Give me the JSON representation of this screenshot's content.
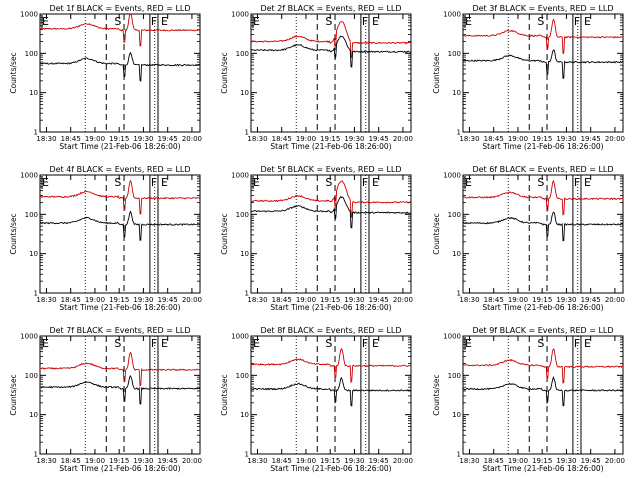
{
  "figure": {
    "title_template": "Det {n}f BLACK = Events, RED = LLD",
    "x_ticks": [
      "18:30",
      "18:45",
      "19:00",
      "19:15",
      "19:30",
      "19:45",
      "20:00"
    ],
    "y_ticks": [
      "1",
      "10",
      "100",
      "1000"
    ],
    "ylabel": "Counts/sec",
    "xlabel": "Start Time (21-Feb-06 18:26:00)",
    "markers": [
      "E",
      "S",
      "F",
      "E"
    ]
  },
  "chart_data": [
    {
      "type": "line",
      "title": "Det 1f BLACK = Events, RED = LLD",
      "xlabel": "Start Time (21-Feb-06 18:26:00)",
      "ylabel": "Counts/sec",
      "ylim": [
        1,
        1000
      ],
      "scale": "log",
      "x_ticks": [
        "18:30",
        "18:45",
        "19:00",
        "19:15",
        "19:30",
        "19:45",
        "20:00"
      ],
      "events_level": 55,
      "lld_level": 420,
      "flare": "narrow",
      "series": [
        {
          "name": "BLACK = Events",
          "color": "#000000"
        },
        {
          "name": "RED = LLD",
          "color": "#cc0000"
        }
      ]
    },
    {
      "type": "line",
      "title": "Det 2f BLACK = Events, RED = LLD",
      "xlabel": "Start Time (21-Feb-06 18:26:00)",
      "ylabel": "Counts/sec",
      "ylim": [
        1,
        1000
      ],
      "scale": "log",
      "x_ticks": [
        "18:30",
        "18:45",
        "19:00",
        "19:15",
        "19:30",
        "19:45",
        "20:00"
      ],
      "events_level": 120,
      "lld_level": 200,
      "flare": "broad",
      "series": [
        {
          "name": "BLACK = Events",
          "color": "#000000"
        },
        {
          "name": "RED = LLD",
          "color": "#cc0000"
        }
      ]
    },
    {
      "type": "line",
      "title": "Det 3f BLACK = Events, RED = LLD",
      "xlabel": "Start Time (21-Feb-06 18:26:00)",
      "ylabel": "Counts/sec",
      "ylim": [
        1,
        1000
      ],
      "scale": "log",
      "x_ticks": [
        "18:30",
        "18:45",
        "19:00",
        "19:15",
        "19:30",
        "19:45",
        "20:00"
      ],
      "events_level": 65,
      "lld_level": 280,
      "flare": "narrow",
      "series": [
        {
          "name": "BLACK = Events",
          "color": "#000000"
        },
        {
          "name": "RED = LLD",
          "color": "#cc0000"
        }
      ]
    },
    {
      "type": "line",
      "title": "Det 4f BLACK = Events, RED = LLD",
      "xlabel": "Start Time (21-Feb-06 18:26:00)",
      "ylabel": "Counts/sec",
      "ylim": [
        1,
        1000
      ],
      "scale": "log",
      "x_ticks": [
        "18:30",
        "18:45",
        "19:00",
        "19:15",
        "19:30",
        "19:45",
        "20:00"
      ],
      "events_level": 60,
      "lld_level": 280,
      "flare": "narrow",
      "series": [
        {
          "name": "BLACK = Events",
          "color": "#000000"
        },
        {
          "name": "RED = LLD",
          "color": "#cc0000"
        }
      ]
    },
    {
      "type": "line",
      "title": "Det 5f BLACK = Events, RED = LLD",
      "xlabel": "Start Time (21-Feb-06 18:26:00)",
      "ylabel": "Counts/sec",
      "ylim": [
        1,
        1000
      ],
      "scale": "log",
      "x_ticks": [
        "18:30",
        "18:45",
        "19:00",
        "19:15",
        "19:30",
        "19:45",
        "20:00"
      ],
      "events_level": 120,
      "lld_level": 220,
      "flare": "broad",
      "series": [
        {
          "name": "BLACK = Events",
          "color": "#000000"
        },
        {
          "name": "RED = LLD",
          "color": "#cc0000"
        }
      ]
    },
    {
      "type": "line",
      "title": "Det 6f BLACK = Events, RED = LLD",
      "xlabel": "Start Time (21-Feb-06 18:26:00)",
      "ylabel": "Counts/sec",
      "ylim": [
        1,
        1000
      ],
      "scale": "log",
      "x_ticks": [
        "18:30",
        "18:45",
        "19:00",
        "19:15",
        "19:30",
        "19:45",
        "20:00"
      ],
      "events_level": 60,
      "lld_level": 270,
      "flare": "narrow",
      "series": [
        {
          "name": "BLACK = Events",
          "color": "#000000"
        },
        {
          "name": "RED = LLD",
          "color": "#cc0000"
        }
      ]
    },
    {
      "type": "line",
      "title": "Det 7f BLACK = Events, RED = LLD",
      "xlabel": "Start Time (21-Feb-06 18:26:00)",
      "ylabel": "Counts/sec",
      "ylim": [
        1,
        1000
      ],
      "scale": "log",
      "x_ticks": [
        "18:30",
        "18:45",
        "19:00",
        "19:15",
        "19:30",
        "19:45",
        "20:00"
      ],
      "events_level": 50,
      "lld_level": 150,
      "flare": "narrow",
      "series": [
        {
          "name": "BLACK = Events",
          "color": "#000000"
        },
        {
          "name": "RED = LLD",
          "color": "#cc0000"
        }
      ]
    },
    {
      "type": "line",
      "title": "Det 8f BLACK = Events, RED = LLD",
      "xlabel": "Start Time (21-Feb-06 18:26:00)",
      "ylabel": "Counts/sec",
      "ylim": [
        1,
        1000
      ],
      "scale": "log",
      "x_ticks": [
        "18:30",
        "18:45",
        "19:00",
        "19:15",
        "19:30",
        "19:45",
        "20:00"
      ],
      "events_level": 45,
      "lld_level": 190,
      "flare": "narrow",
      "series": [
        {
          "name": "BLACK = Events",
          "color": "#000000"
        },
        {
          "name": "RED = LLD",
          "color": "#cc0000"
        }
      ]
    },
    {
      "type": "line",
      "title": "Det 9f BLACK = Events, RED = LLD",
      "xlabel": "Start Time (21-Feb-06 18:26:00)",
      "ylabel": "Counts/sec",
      "ylim": [
        1,
        1000
      ],
      "scale": "log",
      "x_ticks": [
        "18:30",
        "18:45",
        "19:00",
        "19:15",
        "19:30",
        "19:45",
        "20:00"
      ],
      "events_level": 45,
      "lld_level": 180,
      "flare": "narrow",
      "series": [
        {
          "name": "BLACK = Events",
          "color": "#000000"
        },
        {
          "name": "RED = LLD",
          "color": "#cc0000"
        }
      ]
    }
  ]
}
